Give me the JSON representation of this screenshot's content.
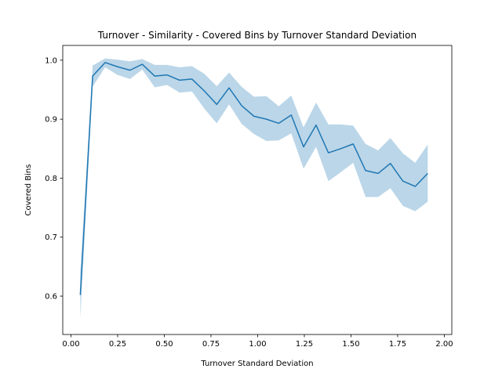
{
  "chart_data": {
    "type": "line",
    "title": "Turnover - Similarity - Covered Bins by Turnover Standard Deviation",
    "xlabel": "Turnover Standard Deviation",
    "ylabel": "Covered Bins",
    "xlim": [
      -0.044,
      2.04
    ],
    "ylim": [
      0.535,
      1.025
    ],
    "xticks": [
      0.0,
      0.25,
      0.5,
      0.75,
      1.0,
      1.25,
      1.5,
      1.75,
      2.0
    ],
    "xtick_labels": [
      "0.00",
      "0.25",
      "0.50",
      "0.75",
      "1.00",
      "1.25",
      "1.50",
      "1.75",
      "2.00"
    ],
    "yticks": [
      0.6,
      0.7,
      0.8,
      0.9,
      1.0
    ],
    "ytick_labels": [
      "0.6",
      "0.7",
      "0.8",
      "0.9",
      "1.0"
    ],
    "grid": false,
    "colors": {
      "line": "#1f77b4",
      "band": "#1f77b4"
    },
    "series": [
      {
        "x": [
          0.05,
          0.116,
          0.183,
          0.249,
          0.316,
          0.382,
          0.449,
          0.515,
          0.582,
          0.648,
          0.714,
          0.781,
          0.847,
          0.914,
          0.98,
          1.047,
          1.113,
          1.18,
          1.246,
          1.313,
          1.379,
          1.445,
          1.512,
          1.578,
          1.645,
          1.711,
          1.778,
          1.844,
          1.911
        ],
        "y": [
          0.602,
          0.973,
          0.996,
          0.989,
          0.983,
          0.993,
          0.973,
          0.975,
          0.966,
          0.968,
          0.948,
          0.925,
          0.953,
          0.923,
          0.905,
          0.9,
          0.893,
          0.907,
          0.853,
          0.89,
          0.843,
          0.85,
          0.858,
          0.813,
          0.808,
          0.825,
          0.795,
          0.786,
          0.808
        ],
        "lower": [
          0.562,
          0.955,
          0.988,
          0.975,
          0.968,
          0.984,
          0.954,
          0.958,
          0.945,
          0.947,
          0.918,
          0.893,
          0.925,
          0.892,
          0.875,
          0.863,
          0.864,
          0.876,
          0.816,
          0.853,
          0.795,
          0.81,
          0.826,
          0.768,
          0.768,
          0.783,
          0.753,
          0.744,
          0.76
        ],
        "upper": [
          0.64,
          0.991,
          1.003,
          1.001,
          0.998,
          1.002,
          0.992,
          0.992,
          0.988,
          0.99,
          0.977,
          0.956,
          0.979,
          0.955,
          0.938,
          0.939,
          0.922,
          0.94,
          0.886,
          0.928,
          0.891,
          0.891,
          0.889,
          0.858,
          0.847,
          0.868,
          0.842,
          0.826,
          0.857
        ]
      }
    ]
  }
}
